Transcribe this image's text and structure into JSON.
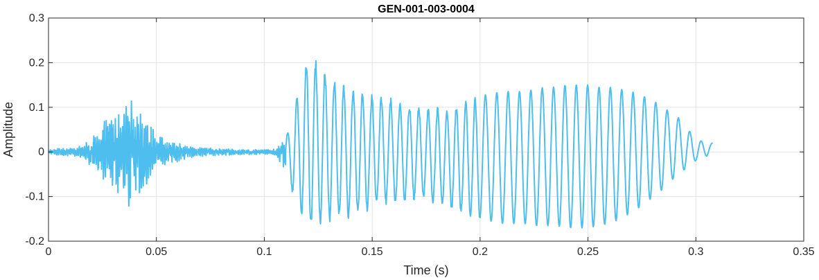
{
  "chart_data": {
    "type": "line",
    "title": "GEN-001-003-0004",
    "xlabel": "Time (s)",
    "ylabel": "Amplitude",
    "xlim": [
      0,
      0.35
    ],
    "ylim": [
      -0.2,
      0.3
    ],
    "xticks": [
      0,
      0.05,
      0.1,
      0.15,
      0.2,
      0.25,
      0.3,
      0.35
    ],
    "xtick_labels": [
      "0",
      "0.05",
      "0.1",
      "0.15",
      "0.2",
      "0.25",
      "0.3",
      "0.35"
    ],
    "yticks": [
      -0.2,
      -0.1,
      0,
      0.1,
      0.2,
      0.3
    ],
    "ytick_labels": [
      "-0.2",
      "-0.1",
      "0",
      "0.1",
      "0.2",
      "0.3"
    ],
    "grid": true,
    "line_color": "#4DBEEE",
    "series": [
      {
        "x": [
          0.0,
          0.005,
          0.01,
          0.015,
          0.02,
          0.025,
          0.03,
          0.035,
          0.0375,
          0.04,
          0.045,
          0.05,
          0.055,
          0.06,
          0.065,
          0.07,
          0.08,
          0.09,
          0.1,
          0.105,
          0.11,
          0.115,
          0.12,
          0.122,
          0.125,
          0.13,
          0.135,
          0.14,
          0.145,
          0.15,
          0.155,
          0.16,
          0.165,
          0.17,
          0.175,
          0.18,
          0.185,
          0.19,
          0.195,
          0.2,
          0.205,
          0.21,
          0.215,
          0.22,
          0.225,
          0.23,
          0.235,
          0.24,
          0.245,
          0.25,
          0.255,
          0.26,
          0.265,
          0.27,
          0.275,
          0.28,
          0.285,
          0.29,
          0.295,
          0.3,
          0.305,
          0.308
        ],
        "y_upper": [
          0.005,
          0.008,
          0.008,
          0.012,
          0.03,
          0.06,
          0.08,
          0.1,
          0.11,
          0.1,
          0.08,
          0.04,
          0.025,
          0.02,
          0.012,
          0.01,
          0.007,
          0.006,
          0.005,
          0.006,
          0.03,
          0.13,
          0.22,
          0.225,
          0.2,
          0.18,
          0.16,
          0.15,
          0.14,
          0.13,
          0.13,
          0.12,
          0.11,
          0.11,
          0.1,
          0.1,
          0.1,
          0.11,
          0.12,
          0.13,
          0.135,
          0.14,
          0.14,
          0.14,
          0.145,
          0.15,
          0.15,
          0.155,
          0.155,
          0.155,
          0.15,
          0.15,
          0.145,
          0.14,
          0.13,
          0.12,
          0.1,
          0.09,
          0.06,
          0.03,
          0.02,
          0.02
        ],
        "y_lower": [
          -0.005,
          -0.008,
          -0.008,
          -0.012,
          -0.03,
          -0.06,
          -0.08,
          -0.1,
          -0.12,
          -0.1,
          -0.08,
          -0.04,
          -0.025,
          -0.02,
          -0.012,
          -0.01,
          -0.007,
          -0.006,
          -0.005,
          -0.006,
          -0.04,
          -0.13,
          -0.17,
          -0.175,
          -0.17,
          -0.16,
          -0.155,
          -0.15,
          -0.14,
          -0.13,
          -0.12,
          -0.12,
          -0.115,
          -0.11,
          -0.11,
          -0.12,
          -0.13,
          -0.14,
          -0.15,
          -0.155,
          -0.16,
          -0.165,
          -0.165,
          -0.165,
          -0.17,
          -0.17,
          -0.17,
          -0.175,
          -0.175,
          -0.175,
          -0.17,
          -0.165,
          -0.155,
          -0.14,
          -0.125,
          -0.105,
          -0.085,
          -0.06,
          -0.04,
          -0.02,
          -0.01,
          0.01
        ]
      }
    ]
  }
}
